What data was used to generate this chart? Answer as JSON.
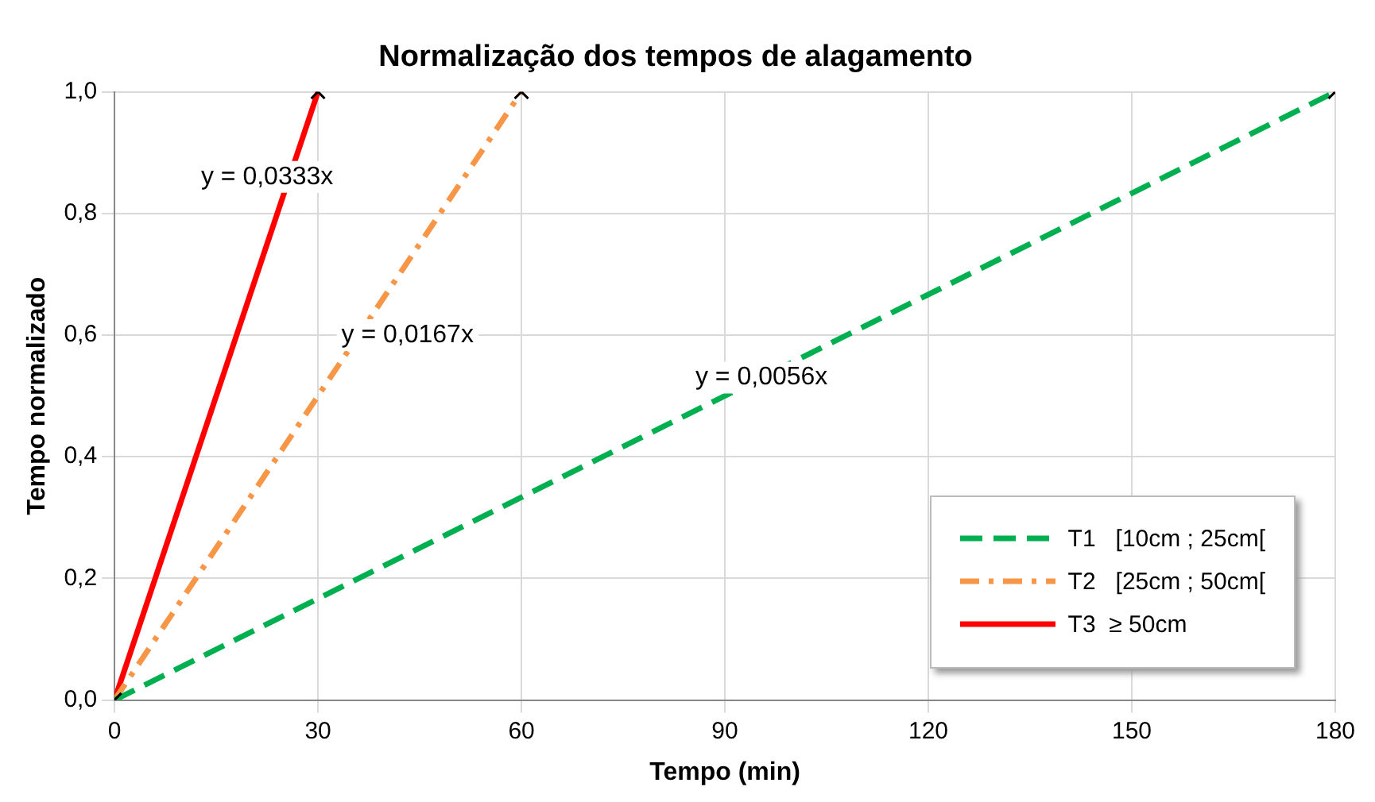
{
  "chart_data": {
    "type": "line",
    "title": "Normalização dos tempos de alagamento",
    "xlabel": "Tempo (min)",
    "ylabel": "Tempo normalizado",
    "xlim": [
      0,
      180
    ],
    "xticks": [
      0,
      30,
      60,
      90,
      120,
      150,
      180
    ],
    "ylim": [
      0,
      1
    ],
    "yticks": [
      {
        "value": 0,
        "label": "0,0"
      },
      {
        "value": 0.2,
        "label": "0,2"
      },
      {
        "value": 0.4,
        "label": "0,4"
      },
      {
        "value": 0.6,
        "label": "0,6"
      },
      {
        "value": 0.8,
        "label": "0,8"
      },
      {
        "value": 1,
        "label": "1,0"
      }
    ],
    "grid": true,
    "legend": "bottom right",
    "marker": "cross",
    "series": [
      {
        "name": "T1   [10cm ; 25cm[",
        "color": "#00b050",
        "x": [
          0,
          180
        ],
        "values": [
          0,
          1
        ],
        "line_style": "dashed"
      },
      {
        "name": "T2   [25cm ; 50cm[",
        "color": "#f79646",
        "x": [
          0,
          60
        ],
        "values": [
          0,
          1
        ],
        "line_style": "dashdot"
      },
      {
        "name": "T3  ≥ 50cm",
        "color": "#ff0000",
        "x": [
          0,
          30
        ],
        "values": [
          0,
          1
        ],
        "line_style": "solid"
      }
    ],
    "annotations": [
      "y = 0,0333x",
      "y = 0,0167x",
      "y = 0,0056x"
    ]
  }
}
